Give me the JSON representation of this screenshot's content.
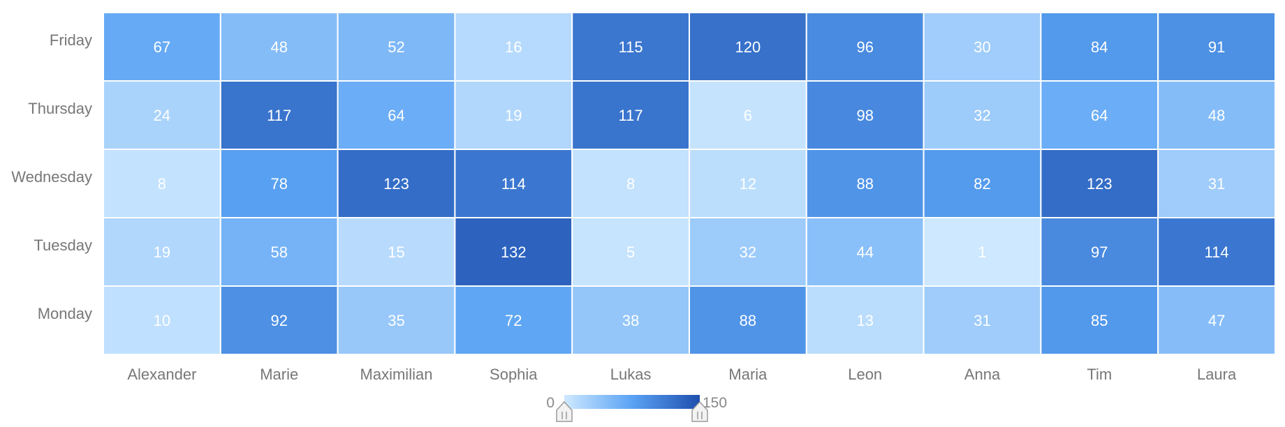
{
  "chart_data": {
    "type": "heatmap",
    "title": "",
    "xlabel": "",
    "ylabel": "",
    "x_categories": [
      "Alexander",
      "Marie",
      "Maximilian",
      "Sophia",
      "Lukas",
      "Maria",
      "Leon",
      "Anna",
      "Tim",
      "Laura"
    ],
    "y_categories": [
      "Monday",
      "Tuesday",
      "Wednesday",
      "Thursday",
      "Friday"
    ],
    "values_by_row": {
      "Friday": [
        67,
        48,
        52,
        16,
        115,
        120,
        96,
        30,
        84,
        91
      ],
      "Thursday": [
        24,
        117,
        64,
        19,
        117,
        6,
        98,
        32,
        64,
        48
      ],
      "Wednesday": [
        8,
        78,
        123,
        114,
        8,
        12,
        88,
        82,
        123,
        31
      ],
      "Tuesday": [
        19,
        58,
        15,
        132,
        5,
        32,
        44,
        1,
        97,
        114
      ],
      "Monday": [
        10,
        92,
        35,
        72,
        38,
        88,
        13,
        31,
        85,
        47
      ]
    },
    "color_scale": {
      "min": 0,
      "max": 150,
      "min_color": "#cfe9ff",
      "max_color": "#1f4fae"
    },
    "legend": {
      "min_label": "0",
      "max_label": "150",
      "placement": "bottom-center",
      "handles": true
    },
    "grid": false
  }
}
